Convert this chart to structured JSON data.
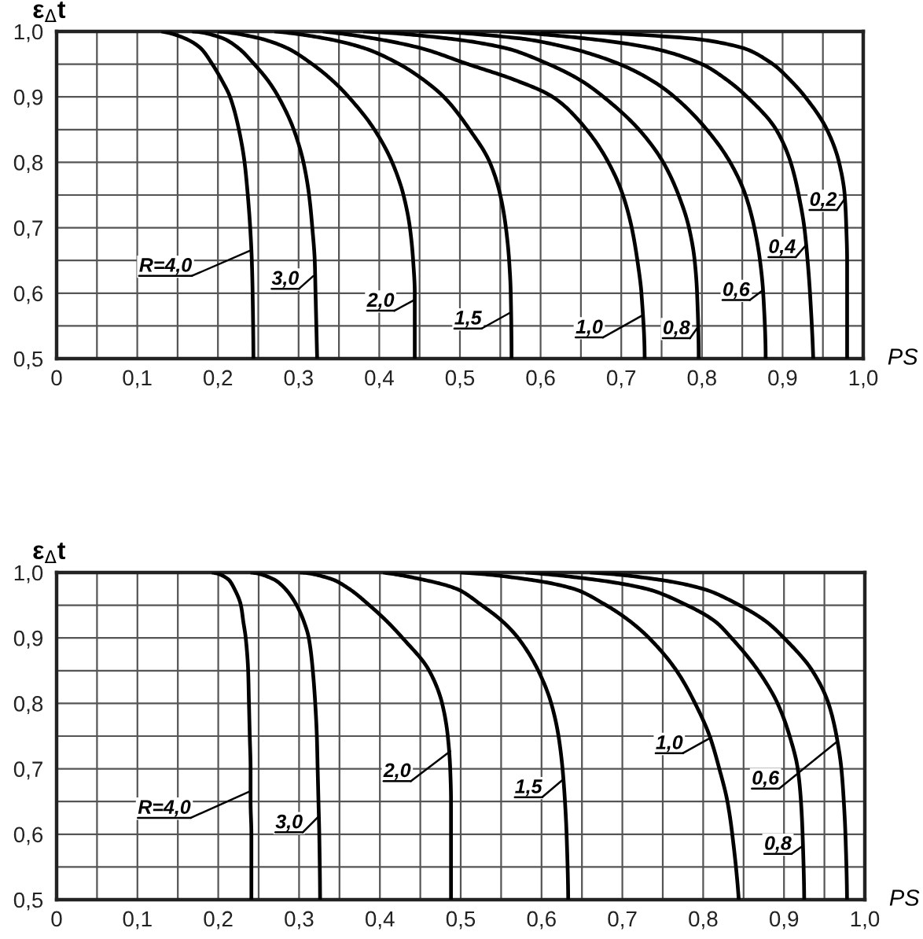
{
  "chart_data": [
    {
      "type": "line",
      "xlabel": "PS",
      "ylabel": "ε$_{Δ}$t",
      "xlim": [
        0,
        1
      ],
      "ylim": [
        0.5,
        1
      ],
      "grid": true,
      "line_style": "solid",
      "xticks": [
        0,
        {
          "value": 0.05,
          "label": null
        },
        {
          "value": 0.1,
          "label": "0,1"
        },
        {
          "value": 0.15,
          "label": null
        },
        {
          "value": 0.2,
          "label": "0,2"
        },
        {
          "value": 0.25,
          "label": null
        },
        {
          "value": 0.3,
          "label": "0,3"
        },
        {
          "value": 0.35,
          "label": null
        },
        {
          "value": 0.4,
          "label": "0,4"
        },
        {
          "value": 0.45,
          "label": null
        },
        {
          "value": 0.5,
          "label": "0,5"
        },
        {
          "value": 0.55,
          "label": null
        },
        {
          "value": 0.6,
          "label": "0,6"
        },
        {
          "value": 0.65,
          "label": null
        },
        {
          "value": 0.7,
          "label": "0,7"
        },
        {
          "value": 0.75,
          "label": null
        },
        {
          "value": 0.8,
          "label": "0,8"
        },
        {
          "value": 0.85,
          "label": null
        },
        {
          "value": 0.9,
          "label": "0,9"
        },
        {
          "value": 0.95,
          "label": null
        },
        {
          "value": 1,
          "label": "1,0"
        }
      ],
      "yticks": [
        {
          "value": 0.5,
          "label": "0,5"
        },
        {
          "value": 0.55,
          "label": null
        },
        {
          "value": 0.6,
          "label": "0,6"
        },
        {
          "value": 0.65,
          "label": null
        },
        {
          "value": 0.7,
          "label": "0,7"
        },
        {
          "value": 0.75,
          "label": null
        },
        {
          "value": 0.8,
          "label": "0,8"
        },
        {
          "value": 0.85,
          "label": null
        },
        {
          "value": 0.9,
          "label": "0,9"
        },
        {
          "value": 0.95,
          "label": null
        },
        {
          "value": 1,
          "label": "1,0"
        }
      ],
      "series": [
        {
          "color": "#000000",
          "x": [
            0.13,
            0.158,
            0.178,
            0.193,
            0.205,
            0.215,
            0.226,
            0.233,
            0.237,
            0.24,
            0.242,
            0.243,
            0.244
          ],
          "values": [
            1.0,
            0.99,
            0.975,
            0.95,
            0.925,
            0.9,
            0.85,
            0.8,
            0.75,
            0.7,
            0.65,
            0.6,
            0.5
          ]
        },
        {
          "color": "#000000",
          "x": [
            0.168,
            0.205,
            0.225,
            0.245,
            0.262,
            0.275,
            0.294,
            0.306,
            0.313,
            0.317,
            0.32,
            0.321,
            0.323
          ],
          "values": [
            1.0,
            0.99,
            0.975,
            0.95,
            0.925,
            0.9,
            0.85,
            0.8,
            0.75,
            0.7,
            0.65,
            0.6,
            0.5
          ]
        },
        {
          "color": "#000000",
          "x": [
            0.2,
            0.25,
            0.285,
            0.317,
            0.342,
            0.362,
            0.394,
            0.416,
            0.43,
            0.438,
            0.442,
            0.444,
            0.444
          ],
          "values": [
            1.0,
            0.99,
            0.975,
            0.95,
            0.925,
            0.9,
            0.85,
            0.8,
            0.75,
            0.7,
            0.65,
            0.6,
            0.5
          ]
        },
        {
          "color": "#000000",
          "x": [
            0.27,
            0.33,
            0.38,
            0.425,
            0.456,
            0.48,
            0.512,
            0.537,
            0.55,
            0.557,
            0.561,
            0.563,
            0.564
          ],
          "values": [
            1.0,
            0.99,
            0.975,
            0.95,
            0.925,
            0.9,
            0.85,
            0.8,
            0.75,
            0.7,
            0.65,
            0.6,
            0.5
          ]
        },
        {
          "color": "#000000",
          "x": [
            0.33,
            0.39,
            0.45,
            0.51,
            0.57,
            0.615,
            0.657,
            0.684,
            0.702,
            0.713,
            0.72,
            0.725,
            0.729
          ],
          "values": [
            1.0,
            0.99,
            0.975,
            0.95,
            0.925,
            0.9,
            0.85,
            0.8,
            0.75,
            0.7,
            0.65,
            0.6,
            0.5
          ]
        },
        {
          "color": "#000000",
          "x": [
            0.38,
            0.48,
            0.555,
            0.61,
            0.65,
            0.678,
            0.722,
            0.752,
            0.771,
            0.784,
            0.791,
            0.794,
            0.796
          ],
          "values": [
            1.0,
            0.99,
            0.975,
            0.95,
            0.925,
            0.9,
            0.85,
            0.8,
            0.75,
            0.7,
            0.65,
            0.6,
            0.5
          ]
        },
        {
          "color": "#000000",
          "x": [
            0.45,
            0.57,
            0.635,
            0.698,
            0.738,
            0.766,
            0.806,
            0.835,
            0.854,
            0.865,
            0.872,
            0.876,
            0.879
          ],
          "values": [
            1.0,
            0.99,
            0.975,
            0.95,
            0.925,
            0.9,
            0.85,
            0.8,
            0.75,
            0.7,
            0.65,
            0.6,
            0.5
          ]
        },
        {
          "color": "#000000",
          "x": [
            0.55,
            0.65,
            0.736,
            0.8,
            0.832,
            0.856,
            0.892,
            0.91,
            0.92,
            0.927,
            0.931,
            0.934,
            0.938
          ],
          "values": [
            1.0,
            0.99,
            0.975,
            0.95,
            0.925,
            0.9,
            0.85,
            0.8,
            0.75,
            0.7,
            0.65,
            0.6,
            0.5
          ]
        },
        {
          "color": "#000000",
          "x": [
            0.6,
            0.78,
            0.85,
            0.888,
            0.91,
            0.928,
            0.955,
            0.97,
            0.977,
            0.979,
            0.98,
            0.98,
            0.98
          ],
          "values": [
            1.0,
            0.99,
            0.975,
            0.95,
            0.925,
            0.9,
            0.85,
            0.8,
            0.75,
            0.7,
            0.65,
            0.6,
            0.5
          ]
        }
      ],
      "annotations": [
        {
          "text": "R=4,0",
          "x": 0.24,
          "y": 0.665
        },
        {
          "text": "3,0",
          "x": 0.318,
          "y": 0.626
        },
        {
          "text": "2,0",
          "x": 0.444,
          "y": 0.59
        },
        {
          "text": "1,5",
          "x": 0.562,
          "y": 0.57
        },
        {
          "text": "1,0",
          "x": 0.726,
          "y": 0.566
        },
        {
          "text": "0,8",
          "x": 0.795,
          "y": 0.548
        },
        {
          "text": "0,6",
          "x": 0.875,
          "y": 0.604
        },
        {
          "text": "0,4",
          "x": 0.928,
          "y": 0.672
        },
        {
          "text": "0,2",
          "x": 0.977,
          "y": 0.744
        }
      ]
    },
    {
      "type": "line",
      "xlabel": "PS",
      "ylabel": "ε$_{Δ}$t",
      "xlim": [
        0,
        1
      ],
      "ylim": [
        0.5,
        1
      ],
      "grid": true,
      "line_style": "solid",
      "xticks": [
        0,
        {
          "value": 0.05,
          "label": null
        },
        {
          "value": 0.1,
          "label": "0,1"
        },
        {
          "value": 0.15,
          "label": null
        },
        {
          "value": 0.2,
          "label": "0,2"
        },
        {
          "value": 0.25,
          "label": null
        },
        {
          "value": 0.3,
          "label": "0,3"
        },
        {
          "value": 0.35,
          "label": null
        },
        {
          "value": 0.4,
          "label": "0,4"
        },
        {
          "value": 0.45,
          "label": null
        },
        {
          "value": 0.5,
          "label": "0,5"
        },
        {
          "value": 0.55,
          "label": null
        },
        {
          "value": 0.6,
          "label": "0,6"
        },
        {
          "value": 0.65,
          "label": null
        },
        {
          "value": 0.7,
          "label": "0,7"
        },
        {
          "value": 0.75,
          "label": null
        },
        {
          "value": 0.8,
          "label": "0,8"
        },
        {
          "value": 0.85,
          "label": null
        },
        {
          "value": 0.9,
          "label": "0,9"
        },
        {
          "value": 0.95,
          "label": null
        },
        {
          "value": 1,
          "label": "1,0"
        }
      ],
      "yticks": [
        {
          "value": 0.5,
          "label": "0,5"
        },
        {
          "value": 0.55,
          "label": null
        },
        {
          "value": 0.6,
          "label": "0,6"
        },
        {
          "value": 0.65,
          "label": null
        },
        {
          "value": 0.7,
          "label": "0,7"
        },
        {
          "value": 0.75,
          "label": null
        },
        {
          "value": 0.8,
          "label": "0,8"
        },
        {
          "value": 0.85,
          "label": null
        },
        {
          "value": 0.9,
          "label": "0,9"
        },
        {
          "value": 0.95,
          "label": null
        },
        {
          "value": 1,
          "label": "1,0"
        }
      ],
      "series": [
        {
          "color": "#000000",
          "x": [
            0.192,
            0.212,
            0.22,
            0.228,
            0.231,
            0.234,
            0.237,
            0.238,
            0.239,
            0.24,
            0.24,
            0.241,
            0.241
          ],
          "values": [
            1.0,
            0.99,
            0.975,
            0.95,
            0.925,
            0.9,
            0.85,
            0.8,
            0.75,
            0.7,
            0.65,
            0.6,
            0.5
          ]
        },
        {
          "color": "#000000",
          "x": [
            0.24,
            0.268,
            0.283,
            0.297,
            0.306,
            0.312,
            0.317,
            0.32,
            0.322,
            0.323,
            0.324,
            0.325,
            0.326
          ],
          "values": [
            1.0,
            0.99,
            0.975,
            0.95,
            0.925,
            0.9,
            0.85,
            0.8,
            0.75,
            0.7,
            0.65,
            0.6,
            0.5
          ]
        },
        {
          "color": "#000000",
          "x": [
            0.301,
            0.34,
            0.362,
            0.387,
            0.409,
            0.428,
            0.461,
            0.477,
            0.484,
            0.487,
            0.488,
            0.488,
            0.488
          ],
          "values": [
            1.0,
            0.99,
            0.975,
            0.95,
            0.925,
            0.9,
            0.85,
            0.8,
            0.75,
            0.7,
            0.65,
            0.6,
            0.5
          ]
        },
        {
          "color": "#000000",
          "x": [
            0.404,
            0.45,
            0.495,
            0.526,
            0.552,
            0.571,
            0.596,
            0.612,
            0.621,
            0.626,
            0.629,
            0.631,
            0.633
          ],
          "values": [
            1.0,
            0.99,
            0.975,
            0.95,
            0.925,
            0.9,
            0.85,
            0.8,
            0.75,
            0.7,
            0.65,
            0.6,
            0.5
          ]
        },
        {
          "color": "#000000",
          "x": [
            0.5,
            0.58,
            0.64,
            0.68,
            0.71,
            0.733,
            0.767,
            0.79,
            0.808,
            0.82,
            0.83,
            0.836,
            0.844
          ],
          "values": [
            1.0,
            0.99,
            0.975,
            0.95,
            0.925,
            0.9,
            0.85,
            0.8,
            0.75,
            0.7,
            0.65,
            0.6,
            0.5
          ]
        },
        {
          "color": "#000000",
          "x": [
            0.58,
            0.66,
            0.73,
            0.78,
            0.815,
            0.835,
            0.868,
            0.892,
            0.907,
            0.917,
            0.921,
            0.923,
            0.925
          ],
          "values": [
            1.0,
            0.99,
            0.975,
            0.95,
            0.925,
            0.9,
            0.85,
            0.8,
            0.75,
            0.7,
            0.65,
            0.6,
            0.5
          ]
        },
        {
          "color": "#000000",
          "x": [
            0.66,
            0.74,
            0.8,
            0.845,
            0.878,
            0.9,
            0.935,
            0.955,
            0.965,
            0.971,
            0.974,
            0.976,
            0.978
          ],
          "values": [
            1.0,
            0.99,
            0.975,
            0.95,
            0.925,
            0.9,
            0.85,
            0.8,
            0.75,
            0.7,
            0.65,
            0.6,
            0.5
          ]
        }
      ],
      "annotations": [
        {
          "text": "R=4,0",
          "x": 0.24,
          "y": 0.666
        },
        {
          "text": "3,0",
          "x": 0.324,
          "y": 0.627
        },
        {
          "text": "2,0",
          "x": 0.487,
          "y": 0.727
        },
        {
          "text": "1,5",
          "x": 0.626,
          "y": 0.683
        },
        {
          "text": "1,0",
          "x": 0.81,
          "y": 0.748
        },
        {
          "text": "0,6",
          "x": 0.966,
          "y": 0.742
        },
        {
          "text": "0,8",
          "x": 0.923,
          "y": 0.582
        }
      ]
    }
  ]
}
